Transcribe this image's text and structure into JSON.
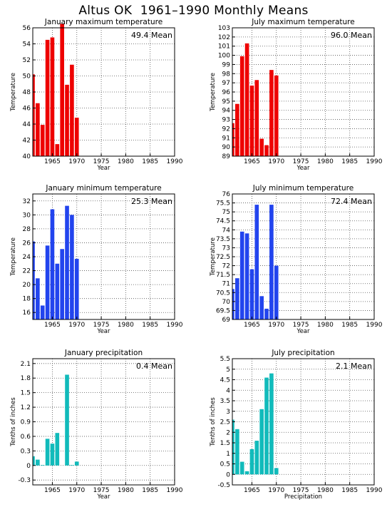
{
  "figure": {
    "title": "Altus OK  1961–1990 Monthly Means"
  },
  "chart_data": [
    {
      "type": "bar",
      "title": "January maximum temperature",
      "xlabel": "Year",
      "ylabel": "Temperature",
      "annotation": "49.4 Mean",
      "color": "#ee0000",
      "x": [
        1961,
        1962,
        1963,
        1964,
        1965,
        1966,
        1967,
        1968,
        1969,
        1970
      ],
      "values": [
        50.2,
        46.6,
        43.9,
        54.5,
        54.8,
        41.5,
        56.5,
        48.9,
        51.4,
        44.8
      ],
      "xlim": [
        1961,
        1990
      ],
      "xticks": [
        1965,
        1970,
        1975,
        1980,
        1985,
        1990
      ],
      "ylim": [
        40,
        56
      ],
      "yticks": [
        40,
        42,
        44,
        46,
        48,
        50,
        52,
        54,
        56
      ],
      "grid": true
    },
    {
      "type": "bar",
      "title": "July maximum temperature",
      "xlabel": "Year",
      "ylabel": "Temperature",
      "annotation": "96.0 Mean",
      "color": "#ee0000",
      "x": [
        1961,
        1962,
        1963,
        1964,
        1965,
        1966,
        1967,
        1968,
        1969,
        1970
      ],
      "values": [
        92.6,
        94.7,
        99.9,
        101.3,
        96.7,
        97.3,
        90.9,
        90.2,
        98.4,
        97.8
      ],
      "xlim": [
        1961,
        1990
      ],
      "xticks": [
        1965,
        1970,
        1975,
        1980,
        1985,
        1990
      ],
      "ylim": [
        89,
        103
      ],
      "yticks": [
        89,
        90,
        91,
        92,
        93,
        94,
        95,
        96,
        97,
        98,
        99,
        100,
        101,
        102,
        103
      ],
      "grid": true
    },
    {
      "type": "bar",
      "title": "January minimum temperature",
      "xlabel": "Year",
      "ylabel": "Temperature",
      "annotation": "25.3 Mean",
      "color": "#2244ee",
      "x": [
        1961,
        1962,
        1963,
        1964,
        1965,
        1966,
        1967,
        1968,
        1969,
        1970
      ],
      "values": [
        26.2,
        20.9,
        17.0,
        25.6,
        30.8,
        23.0,
        25.1,
        31.3,
        30.0,
        23.7
      ],
      "xlim": [
        1961,
        1990
      ],
      "xticks": [
        1965,
        1970,
        1975,
        1980,
        1985,
        1990
      ],
      "ylim": [
        15,
        33
      ],
      "yticks": [
        16,
        18,
        20,
        22,
        24,
        26,
        28,
        30,
        32
      ],
      "grid": true
    },
    {
      "type": "bar",
      "title": "July minimum temperature",
      "xlabel": "Year",
      "ylabel": "Temperature",
      "annotation": "72.4 Mean",
      "color": "#2244ee",
      "x": [
        1961,
        1962,
        1963,
        1964,
        1965,
        1966,
        1967,
        1968,
        1969,
        1970
      ],
      "values": [
        70.7,
        71.3,
        73.9,
        73.8,
        71.8,
        75.4,
        70.3,
        69.6,
        75.4,
        72.0
      ],
      "xlim": [
        1961,
        1990
      ],
      "xticks": [
        1965,
        1970,
        1975,
        1980,
        1985,
        1990
      ],
      "ylim": [
        69,
        76
      ],
      "yticks": [
        69,
        69.5,
        70,
        70.5,
        71,
        71.5,
        72,
        72.5,
        73,
        73.5,
        74,
        74.5,
        75,
        75.5,
        76
      ],
      "grid": true
    },
    {
      "type": "bar",
      "title": "January precipitation",
      "xlabel": "Year",
      "ylabel": "Tenths of inches",
      "annotation": "0.4 Mean",
      "color": "#11bbbb",
      "x": [
        1961,
        1962,
        1963,
        1964,
        1965,
        1966,
        1967,
        1968,
        1969,
        1970
      ],
      "values": [
        0.19,
        0.12,
        0.01,
        0.55,
        0.45,
        0.67,
        0.0,
        1.87,
        0.01,
        0.08
      ],
      "xlim": [
        1961,
        1990
      ],
      "xticks": [
        1965,
        1970,
        1975,
        1980,
        1985,
        1990
      ],
      "ylim": [
        -0.4,
        2.2
      ],
      "yticks": [
        -0.3,
        0,
        0.3,
        0.6,
        0.9,
        1.2,
        1.5,
        1.8,
        2.1
      ],
      "grid": true
    },
    {
      "type": "bar",
      "title": "July precipitation",
      "xlabel": "Precipitation",
      "ylabel": "Tenths of inches",
      "annotation": "2.1 Mean",
      "color": "#11bbbb",
      "x": [
        1961,
        1962,
        1963,
        1964,
        1965,
        1966,
        1967,
        1968,
        1969,
        1970
      ],
      "values": [
        2.6,
        2.15,
        0.6,
        0.15,
        1.2,
        1.6,
        3.1,
        4.6,
        4.8,
        0.3
      ],
      "xlim": [
        1961,
        1990
      ],
      "xticks": [
        1965,
        1970,
        1975,
        1980,
        1985,
        1990
      ],
      "ylim": [
        -0.5,
        5.5
      ],
      "yticks": [
        -0.5,
        0,
        0.5,
        1,
        1.5,
        2,
        2.5,
        3,
        3.5,
        4,
        4.5,
        5,
        5.5
      ],
      "grid": true
    }
  ]
}
